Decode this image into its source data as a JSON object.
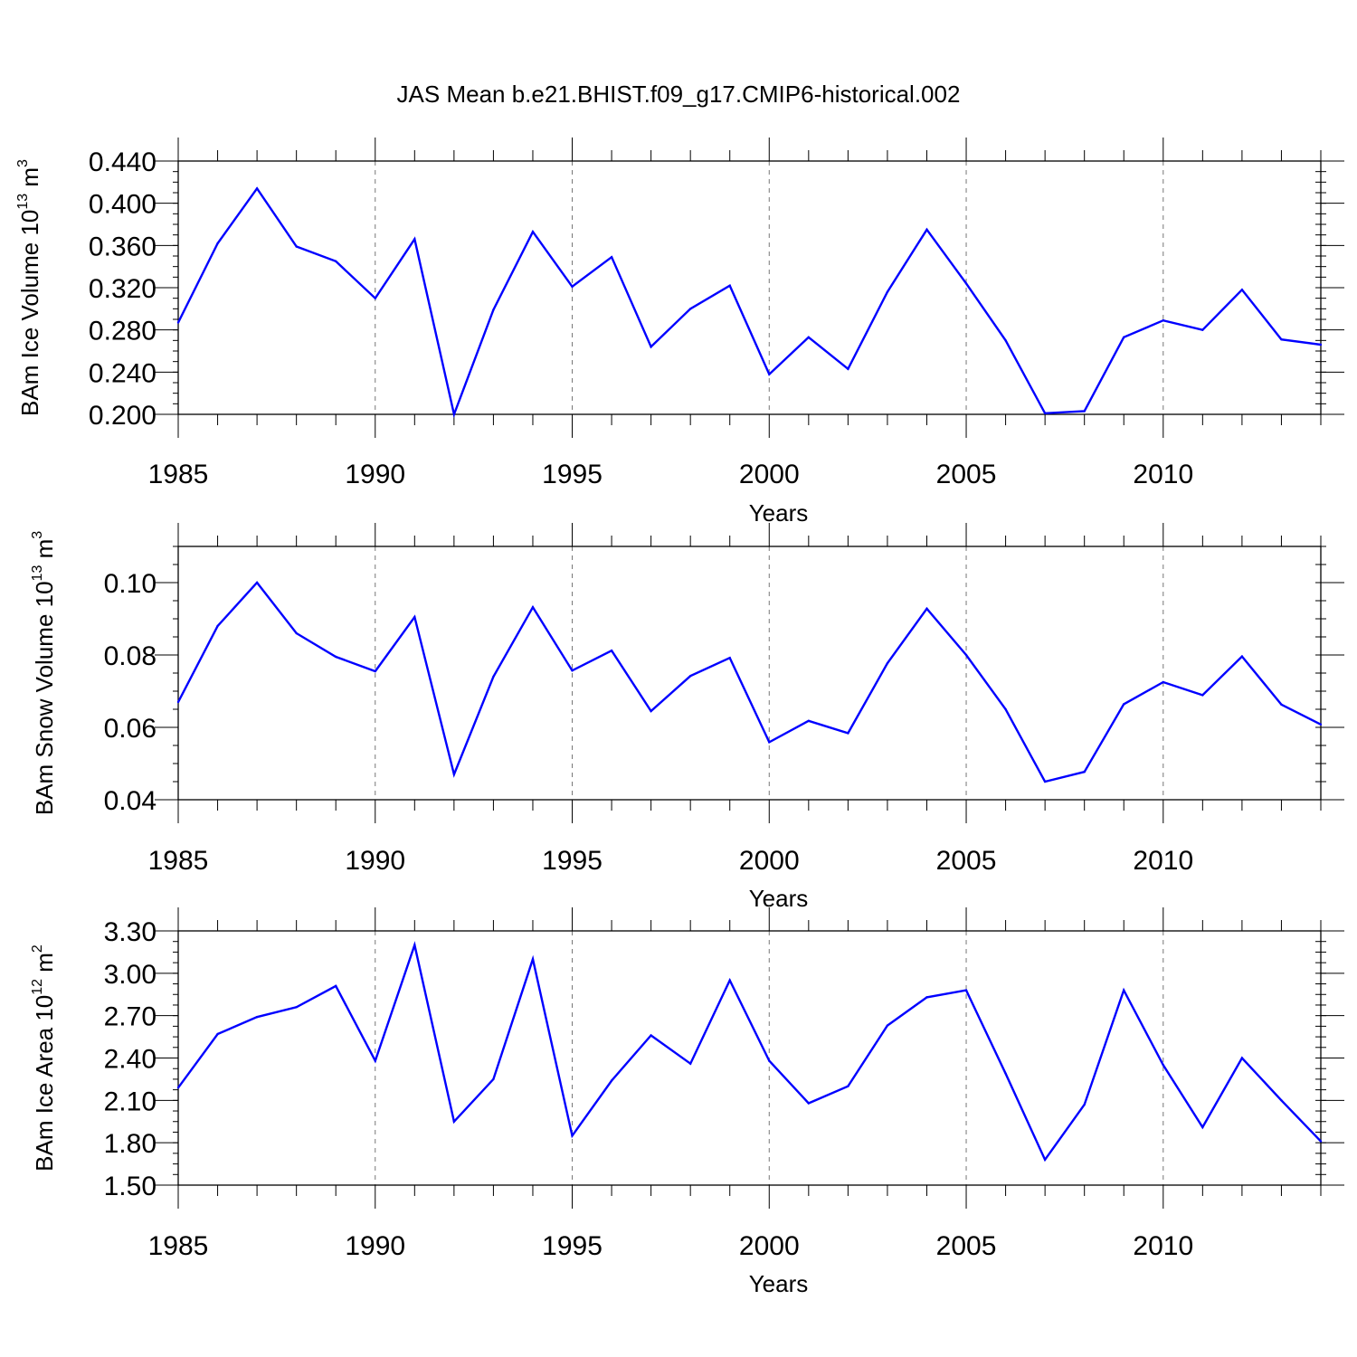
{
  "figure": {
    "title": "JAS Mean b.e21.BHIST.f09_g17.CMIP6-historical.002"
  },
  "chart_data": [
    {
      "type": "line",
      "ylabel": "BAm Ice Volume 10",
      "ylabel_exp": "13",
      "ylabel_unit": " m",
      "ylabel_unit_exp": "3",
      "xlabel": "Years",
      "xlim": [
        1985,
        2014
      ],
      "ylim": [
        0.2,
        0.44
      ],
      "yticks": [
        0.2,
        0.24,
        0.28,
        0.32,
        0.36,
        0.4,
        0.44
      ],
      "ytick_labels": [
        "0.200",
        "0.240",
        "0.280",
        "0.320",
        "0.360",
        "0.400",
        "0.440"
      ],
      "yminor_step": 0.01,
      "xticks": [
        1985,
        1990,
        1995,
        2000,
        2005,
        2010
      ],
      "xtick_labels": [
        "1985",
        "1990",
        "1995",
        "2000",
        "2005",
        "2010"
      ],
      "vgrid": [
        1990,
        1995,
        2000,
        2005,
        2010
      ],
      "line_color": "#0000ff",
      "x": [
        1985,
        1986,
        1987,
        1988,
        1989,
        1990,
        1991,
        1992,
        1993,
        1994,
        1995,
        1996,
        1997,
        1998,
        1999,
        2000,
        2001,
        2002,
        2003,
        2004,
        2005,
        2006,
        2007,
        2008,
        2009,
        2010,
        2011,
        2012,
        2013,
        2014
      ],
      "values": [
        0.287,
        0.362,
        0.414,
        0.359,
        0.345,
        0.31,
        0.366,
        0.2,
        0.299,
        0.373,
        0.321,
        0.349,
        0.264,
        0.3,
        0.322,
        0.238,
        0.273,
        0.243,
        0.316,
        0.375,
        0.324,
        0.27,
        0.201,
        0.203,
        0.273,
        0.289,
        0.28,
        0.318,
        0.271,
        0.266
      ]
    },
    {
      "type": "line",
      "ylabel": "BAm Snow Volume 10",
      "ylabel_exp": "13",
      "ylabel_unit": " m",
      "ylabel_unit_exp": "3",
      "xlabel": "Years",
      "xlim": [
        1985,
        2014
      ],
      "ylim": [
        0.04,
        0.11
      ],
      "yticks": [
        0.04,
        0.06,
        0.08,
        0.1
      ],
      "ytick_labels": [
        "0.04",
        "0.06",
        "0.08",
        "0.10"
      ],
      "yminor_step": 0.005,
      "xticks": [
        1985,
        1990,
        1995,
        2000,
        2005,
        2010
      ],
      "xtick_labels": [
        "1985",
        "1990",
        "1995",
        "2000",
        "2005",
        "2010"
      ],
      "vgrid": [
        1990,
        1995,
        2000,
        2005,
        2010
      ],
      "line_color": "#0000ff",
      "x": [
        1985,
        1986,
        1987,
        1988,
        1989,
        1990,
        1991,
        1992,
        1993,
        1994,
        1995,
        1996,
        1997,
        1998,
        1999,
        2000,
        2001,
        2002,
        2003,
        2004,
        2005,
        2006,
        2007,
        2008,
        2009,
        2010,
        2011,
        2012,
        2013,
        2014
      ],
      "values": [
        0.067,
        0.088,
        0.1,
        0.086,
        0.0795,
        0.0755,
        0.0905,
        0.047,
        0.074,
        0.0932,
        0.0757,
        0.0812,
        0.0645,
        0.0742,
        0.0792,
        0.0559,
        0.0618,
        0.0584,
        0.0777,
        0.0928,
        0.08,
        0.065,
        0.045,
        0.0477,
        0.0664,
        0.0725,
        0.0689,
        0.0796,
        0.0663,
        0.0608
      ]
    },
    {
      "type": "line",
      "ylabel": "BAm Ice Area 10",
      "ylabel_exp": "12",
      "ylabel_unit": " m",
      "ylabel_unit_exp": "2",
      "xlabel": "Years",
      "xlim": [
        1985,
        2014
      ],
      "ylim": [
        1.5,
        3.3
      ],
      "yticks": [
        1.5,
        1.8,
        2.1,
        2.4,
        2.7,
        3.0,
        3.3
      ],
      "ytick_labels": [
        "1.50",
        "1.80",
        "2.10",
        "2.40",
        "2.70",
        "3.00",
        "3.30"
      ],
      "yminor_step": 0.075,
      "xticks": [
        1985,
        1990,
        1995,
        2000,
        2005,
        2010
      ],
      "xtick_labels": [
        "1985",
        "1990",
        "1995",
        "2000",
        "2005",
        "2010"
      ],
      "vgrid": [
        1990,
        1995,
        2000,
        2005,
        2010
      ],
      "line_color": "#0000ff",
      "x": [
        1985,
        1986,
        1987,
        1988,
        1989,
        1990,
        1991,
        1992,
        1993,
        1994,
        1995,
        1996,
        1997,
        1998,
        1999,
        2000,
        2001,
        2002,
        2003,
        2004,
        2005,
        2006,
        2007,
        2008,
        2009,
        2010,
        2011,
        2012,
        2013,
        2014
      ],
      "values": [
        2.19,
        2.57,
        2.69,
        2.76,
        2.91,
        2.38,
        3.2,
        1.95,
        2.25,
        3.1,
        1.85,
        2.24,
        2.56,
        2.36,
        2.95,
        2.38,
        2.08,
        2.2,
        2.63,
        2.83,
        2.88,
        2.29,
        1.68,
        2.07,
        2.88,
        2.35,
        1.91,
        2.4,
        2.1,
        1.81
      ]
    }
  ]
}
